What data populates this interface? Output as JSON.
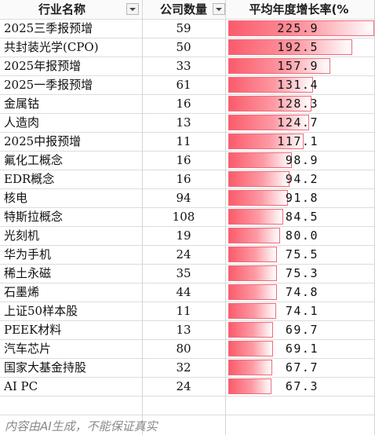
{
  "headers": {
    "name": "行业名称",
    "count": "公司数量",
    "growth": "平均年度增长率(%"
  },
  "rows": [
    {
      "name": "2025三季报预增",
      "count": "59",
      "growth": "225.9"
    },
    {
      "name": "共封装光学(CPO)",
      "count": "50",
      "growth": "192.5"
    },
    {
      "name": "2025年报预增",
      "count": "33",
      "growth": "157.9"
    },
    {
      "name": "2025一季报预增",
      "count": "61",
      "growth": "131.4"
    },
    {
      "name": "金属钴",
      "count": "16",
      "growth": "128.3"
    },
    {
      "name": "人造肉",
      "count": "13",
      "growth": "124.7"
    },
    {
      "name": "2025中报预增",
      "count": "11",
      "growth": "117.1"
    },
    {
      "name": "氟化工概念",
      "count": "16",
      "growth": "98.9"
    },
    {
      "name": "EDR概念",
      "count": "16",
      "growth": "94.2"
    },
    {
      "name": "核电",
      "count": "94",
      "growth": "91.8"
    },
    {
      "name": "特斯拉概念",
      "count": "108",
      "growth": "84.5"
    },
    {
      "name": "光刻机",
      "count": "19",
      "growth": "80.0"
    },
    {
      "name": "华为手机",
      "count": "24",
      "growth": "75.5"
    },
    {
      "name": "稀土永磁",
      "count": "35",
      "growth": "75.3"
    },
    {
      "name": "石墨烯",
      "count": "44",
      "growth": "74.8"
    },
    {
      "name": "上证50样本股",
      "count": "11",
      "growth": "74.1"
    },
    {
      "name": "PEEK材料",
      "count": "13",
      "growth": "69.7"
    },
    {
      "name": "汽车芯片",
      "count": "80",
      "growth": "69.1"
    },
    {
      "name": "国家大基金持股",
      "count": "32",
      "growth": "67.7"
    },
    {
      "name": "AI PC",
      "count": "24",
      "growth": "67.3"
    }
  ],
  "footer": "内容由AI生成，不能保证真实",
  "colors": {
    "bar_fill": "#fb5b6b",
    "bar_border": "#f06a78"
  },
  "icons": {
    "filter": "filter-dropdown-icon"
  }
}
